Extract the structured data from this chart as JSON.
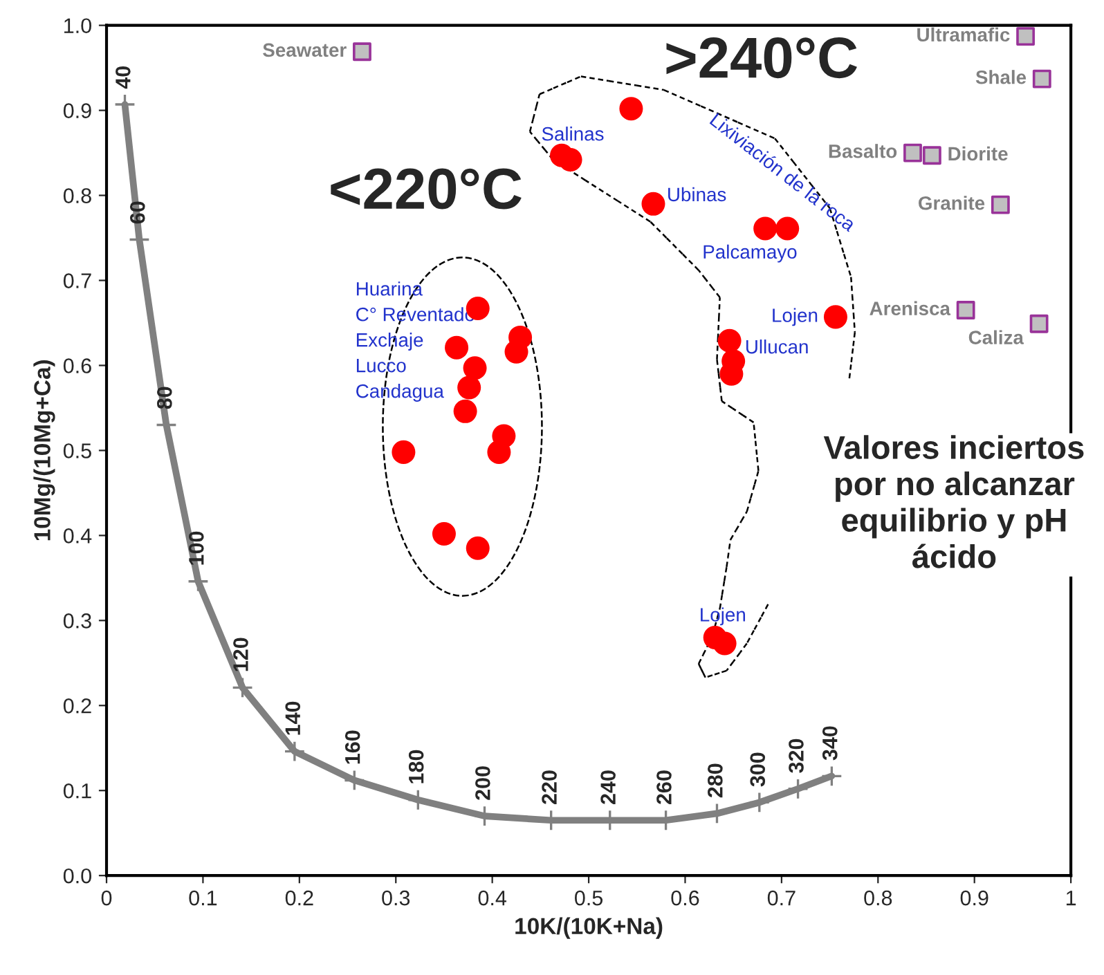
{
  "chart_data": {
    "type": "scatter",
    "xlabel": "10K/(10K+Na)",
    "ylabel": "10Mg/(10Mg+Ca)",
    "xlim": [
      0,
      1
    ],
    "ylim": [
      0,
      1
    ],
    "xticks": [
      {
        "value": 0,
        "label": "0"
      },
      0.1,
      0.2,
      0.3,
      0.4,
      0.5,
      0.6,
      0.7,
      0.8,
      0.9,
      {
        "value": 1,
        "label": "1"
      }
    ],
    "yticks": [
      {
        "value": 0,
        "label": "0.0"
      },
      0.1,
      0.2,
      0.3,
      0.4,
      0.5,
      0.6,
      0.7,
      0.8,
      0.9,
      {
        "value": 1,
        "label": "1.0"
      }
    ],
    "grid": false,
    "legend": false,
    "series": [
      {
        "type": "line",
        "color": "#808080",
        "marker": "cross",
        "line_style": "solid",
        "x": [
          0.019,
          0.034,
          0.062,
          0.095,
          0.141,
          0.195,
          0.257,
          0.323,
          0.392,
          0.461,
          0.522,
          0.58,
          0.633,
          0.677,
          0.717,
          0.752
        ],
        "values": [
          0.907,
          0.748,
          0.53,
          0.346,
          0.221,
          0.146,
          0.112,
          0.089,
          0.07,
          0.065,
          0.065,
          0.065,
          0.073,
          0.086,
          0.102,
          0.117
        ]
      },
      {
        "color": "#ff0000",
        "marker": "circle",
        "x": [
          0.385,
          0.363,
          0.382,
          0.376,
          0.372,
          0.412,
          0.407,
          0.308,
          0.429,
          0.425,
          0.35,
          0.385,
          0.544,
          0.472,
          0.481,
          0.567,
          0.683,
          0.706,
          0.756,
          0.646,
          0.65,
          0.648,
          0.631,
          0.641
        ],
        "values": [
          0.667,
          0.621,
          0.597,
          0.574,
          0.546,
          0.517,
          0.498,
          0.498,
          0.633,
          0.616,
          0.402,
          0.385,
          0.902,
          0.847,
          0.842,
          0.79,
          0.761,
          0.761,
          0.657,
          0.629,
          0.605,
          0.59,
          0.28,
          0.273
        ]
      },
      {
        "color": "#c0c0c0",
        "marker": "square",
        "x": [
          0.265,
          0.953,
          0.97,
          0.836,
          0.856,
          0.927,
          0.891,
          0.967
        ],
        "values": [
          0.969,
          0.987,
          0.937,
          0.85,
          0.847,
          0.789,
          0.665,
          0.649
        ]
      }
    ],
    "annotations": [
      "<220°C",
      ">240°C",
      "Lixiviación de la roca",
      "Valores inciertos\npor no alcanzar\nequilibrio y pH\nácido",
      "Huarina\nC° Reventado\nExchaje\nLucco\nCandagua",
      {
        "text": "Salinas",
        "x": 0.544,
        "y": 0.902
      },
      {
        "text": "Ubinas",
        "x": 0.567,
        "y": 0.79
      },
      {
        "text": "Palcamayo",
        "x": 0.683,
        "y": 0.761
      },
      {
        "text": "Lojen",
        "x": 0.756,
        "y": 0.657
      },
      {
        "text": "Ullucan",
        "x": 0.646,
        "y": 0.629
      },
      {
        "text": "Lojen",
        "x": 0.631,
        "y": 0.28
      },
      {
        "text": "Seawater",
        "x": 0.265,
        "y": 0.969
      },
      {
        "text": "Ultramafic",
        "x": 0.953,
        "y": 0.987
      },
      {
        "text": "Shale",
        "x": 0.97,
        "y": 0.937
      },
      {
        "text": "Basalto",
        "x": 0.836,
        "y": 0.85
      },
      {
        "text": "Diorite",
        "x": 0.856,
        "y": 0.847
      },
      {
        "text": "Granite",
        "x": 0.927,
        "y": 0.789
      },
      {
        "text": "Arenisca",
        "x": 0.891,
        "y": 0.665
      },
      {
        "text": "Caliza",
        "x": 0.967,
        "y": 0.649
      },
      {
        "text": "40",
        "x": 0.019,
        "y": 0.907
      },
      {
        "text": "60",
        "x": 0.034,
        "y": 0.748
      },
      {
        "text": "80",
        "x": 0.062,
        "y": 0.53
      },
      {
        "text": "100",
        "x": 0.095,
        "y": 0.346
      },
      {
        "text": "120",
        "x": 0.141,
        "y": 0.221
      },
      {
        "text": "140",
        "x": 0.195,
        "y": 0.146
      },
      {
        "text": "160",
        "x": 0.257,
        "y": 0.112
      },
      {
        "text": "180",
        "x": 0.323,
        "y": 0.089
      },
      {
        "text": "200",
        "x": 0.392,
        "y": 0.07
      },
      {
        "text": "220",
        "x": 0.461,
        "y": 0.065
      },
      {
        "text": "240",
        "x": 0.522,
        "y": 0.065
      },
      {
        "text": "260",
        "x": 0.58,
        "y": 0.065
      },
      {
        "text": "280",
        "x": 0.633,
        "y": 0.073
      },
      {
        "text": "300",
        "x": 0.677,
        "y": 0.086
      },
      {
        "text": "320",
        "x": 0.717,
        "y": 0.102
      },
      {
        "text": "340",
        "x": 0.752,
        "y": 0.117
      }
    ]
  }
}
